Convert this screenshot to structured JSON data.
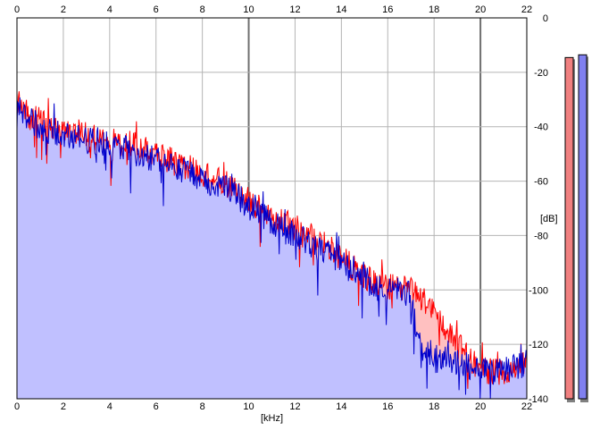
{
  "chart_data": {
    "type": "area",
    "xlabel": "[kHz]",
    "ylabel": "[dB]",
    "xlim": [
      0,
      22
    ],
    "ylim": [
      -140,
      0
    ],
    "x_ticks": [
      "0",
      "2",
      "4",
      "6",
      "8",
      "10",
      "12",
      "14",
      "16",
      "18",
      "20",
      "22"
    ],
    "y_ticks": [
      "0",
      "-20",
      "-40",
      "-60",
      "-80",
      "-100",
      "-120",
      "-140"
    ],
    "grid": true,
    "series": [
      {
        "color": "#ff0000",
        "fill": "#ffc0c0",
        "x": [
          0,
          0.25,
          0.5,
          1,
          1.5,
          2,
          2.5,
          3,
          3.5,
          4,
          4.5,
          5,
          5.5,
          6,
          6.5,
          7,
          7.5,
          8,
          8.5,
          9,
          9.5,
          10,
          10.5,
          11,
          11.5,
          12,
          12.5,
          13,
          13.5,
          14,
          14.5,
          15,
          15.5,
          16,
          16.5,
          17,
          17.3,
          17.6,
          18,
          18.5,
          19,
          19.5,
          20,
          20.5,
          21,
          21.5,
          22
        ],
        "y": [
          -30,
          -33,
          -36,
          -38,
          -40,
          -41,
          -42,
          -43,
          -44,
          -45,
          -46,
          -46,
          -48,
          -50,
          -52,
          -54,
          -55,
          -57,
          -59,
          -61,
          -63,
          -67,
          -70,
          -73,
          -75,
          -77,
          -79,
          -82,
          -85,
          -88,
          -92,
          -95,
          -98,
          -99,
          -99,
          -100,
          -102,
          -104,
          -108,
          -114,
          -120,
          -125,
          -129,
          -130,
          -130,
          -128,
          -127
        ]
      },
      {
        "color": "#0000cc",
        "fill": "#c0c0ff",
        "x": [
          0,
          0.25,
          0.5,
          1,
          1.5,
          2,
          2.5,
          3,
          3.5,
          4,
          4.5,
          5,
          5.5,
          6,
          6.5,
          7,
          7.5,
          8,
          8.5,
          9,
          9.5,
          10,
          10.5,
          11,
          11.5,
          12,
          12.5,
          13,
          13.5,
          14,
          14.5,
          15,
          15.5,
          16,
          16.5,
          17,
          17.2,
          17.5,
          18,
          18.5,
          19,
          19.5,
          20,
          20.5,
          21,
          21.5,
          22
        ],
        "y": [
          -31,
          -34,
          -37,
          -40,
          -42,
          -43,
          -44,
          -45,
          -46,
          -47,
          -47,
          -49,
          -51,
          -52,
          -54,
          -56,
          -57,
          -59,
          -61,
          -62,
          -65,
          -70,
          -72,
          -75,
          -78,
          -80,
          -82,
          -85,
          -87,
          -90,
          -94,
          -96,
          -99,
          -100,
          -100,
          -102,
          -112,
          -122,
          -124,
          -125,
          -127,
          -128,
          -130,
          -130,
          -130,
          -128,
          -127
        ]
      }
    ],
    "level_meters": [
      {
        "color": "#f08080",
        "top_db": -8
      },
      {
        "color": "#8080f0",
        "top_db": -7
      }
    ]
  }
}
